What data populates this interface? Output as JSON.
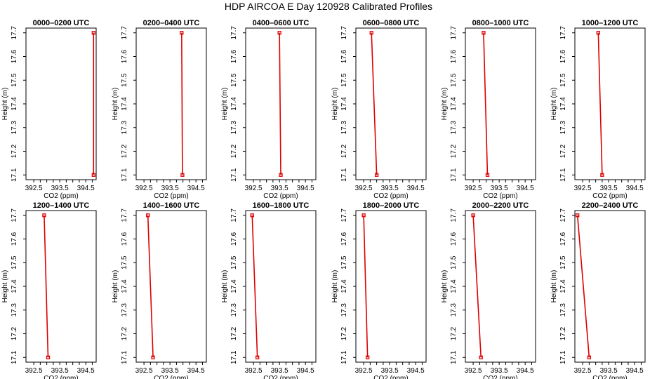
{
  "title": "HDP AIRCOA E  Day 120928  Calibrated Profiles",
  "chart_data": {
    "type": "line",
    "xlabel": "CO2 (ppm)",
    "ylabel": "Height (m)",
    "xlim": [
      392.2,
      394.9
    ],
    "ylim": [
      17.08,
      17.72
    ],
    "x_ticks": [
      "392.5",
      "393.5",
      "394.5"
    ],
    "x_tick_values": [
      392.5,
      392.75,
      393.0,
      393.25,
      393.5,
      393.75,
      394.0,
      394.25,
      394.5,
      394.75
    ],
    "y_ticks": [
      "17.1",
      "17.2",
      "17.3",
      "17.4",
      "17.5",
      "17.6",
      "17.7"
    ],
    "series_color": "#dd0000",
    "panels": [
      {
        "title": "0000–0200 UTC",
        "x": [
          394.8,
          394.8
        ],
        "y": [
          17.7,
          17.1
        ]
      },
      {
        "title": "0200–0400 UTC",
        "x": [
          393.95,
          393.98
        ],
        "y": [
          17.7,
          17.1
        ]
      },
      {
        "title": "0400–0600 UTC",
        "x": [
          393.5,
          393.55
        ],
        "y": [
          17.7,
          17.1
        ]
      },
      {
        "title": "0600–0800 UTC",
        "x": [
          392.8,
          393.0
        ],
        "y": [
          17.7,
          17.1
        ]
      },
      {
        "title": "0800–1000 UTC",
        "x": [
          392.9,
          393.05
        ],
        "y": [
          17.7,
          17.1
        ]
      },
      {
        "title": "1000–1200 UTC",
        "x": [
          393.1,
          393.25
        ],
        "y": [
          17.7,
          17.1
        ]
      },
      {
        "title": "1200–1400 UTC",
        "x": [
          392.9,
          393.05
        ],
        "y": [
          17.7,
          17.1
        ]
      },
      {
        "title": "1400–1600 UTC",
        "x": [
          392.65,
          392.85
        ],
        "y": [
          17.7,
          17.1
        ]
      },
      {
        "title": "1600–1800 UTC",
        "x": [
          392.45,
          392.65
        ],
        "y": [
          17.7,
          17.1
        ]
      },
      {
        "title": "1800–2000 UTC",
        "x": [
          392.5,
          392.65
        ],
        "y": [
          17.7,
          17.1
        ]
      },
      {
        "title": "2000–2200 UTC",
        "x": [
          392.5,
          392.8
        ],
        "y": [
          17.7,
          17.1
        ]
      },
      {
        "title": "2200–2400 UTC",
        "x": [
          392.3,
          392.75
        ],
        "y": [
          17.7,
          17.1
        ]
      }
    ]
  }
}
